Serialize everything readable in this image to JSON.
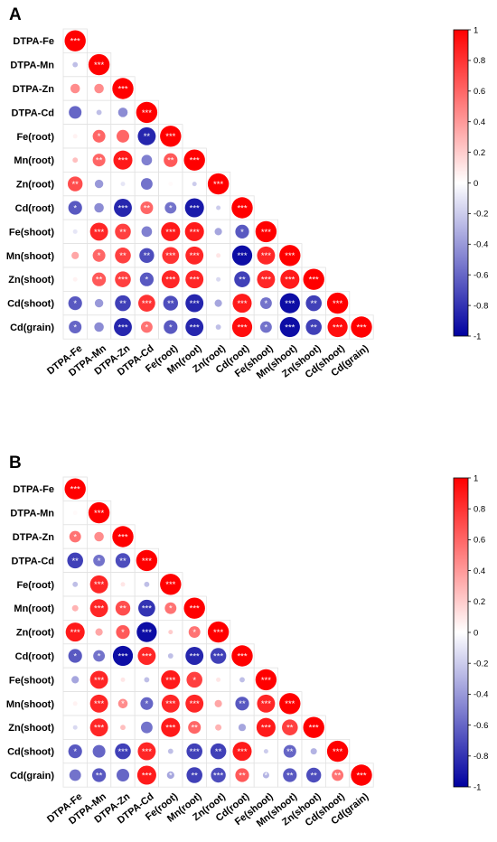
{
  "chart_data": [
    {
      "type": "heatmap",
      "panel": "A",
      "variables": [
        "DTPA-Fe",
        "DTPA-Mn",
        "DTPA-Zn",
        "DTPA-Cd",
        "Fe(root)",
        "Mn(root)",
        "Zn(root)",
        "Cd(root)",
        "Fe(shoot)",
        "Mn(shoot)",
        "Zn(shoot)",
        "Cd(shoot)",
        "Cd(grain)"
      ],
      "colorbar": {
        "min": -1,
        "max": 1,
        "ticks": [
          "1",
          "0.8",
          "0.6",
          "0.4",
          "0.2",
          "0",
          "-0.2",
          "-0.4",
          "-0.6",
          "-0.8",
          "-1"
        ]
      },
      "correlations": [
        [
          1
        ],
        [
          -0.25,
          1
        ],
        [
          0.45,
          0.45,
          1
        ],
        [
          -0.6,
          -0.25,
          -0.45,
          1
        ],
        [
          0.05,
          0.6,
          0.6,
          -0.85,
          1
        ],
        [
          0.25,
          0.6,
          0.9,
          -0.5,
          0.65,
          1
        ],
        [
          0.7,
          -0.4,
          -0.1,
          -0.55,
          0.02,
          -0.2,
          1
        ],
        [
          -0.65,
          -0.45,
          -0.85,
          0.6,
          -0.55,
          -0.9,
          -0.2,
          1
        ],
        [
          -0.1,
          0.85,
          0.75,
          -0.5,
          0.9,
          0.9,
          -0.35,
          -0.65,
          1
        ],
        [
          0.35,
          0.6,
          0.75,
          -0.7,
          0.8,
          0.85,
          0.1,
          -0.95,
          0.85,
          1
        ],
        [
          0.05,
          0.65,
          0.75,
          -0.65,
          0.85,
          0.85,
          -0.15,
          -0.75,
          0.85,
          0.9,
          1
        ],
        [
          -0.65,
          -0.4,
          -0.75,
          0.8,
          -0.7,
          -0.85,
          -0.35,
          0.9,
          -0.55,
          -0.95,
          -0.75,
          1
        ],
        [
          -0.6,
          -0.45,
          -0.85,
          0.55,
          -0.65,
          -0.85,
          -0.25,
          0.95,
          -0.55,
          -0.95,
          -0.75,
          0.95,
          1
        ]
      ],
      "significance": [
        [
          "***"
        ],
        [
          "",
          "***"
        ],
        [
          "",
          "",
          "***"
        ],
        [
          "",
          "",
          "",
          "***"
        ],
        [
          "",
          "*",
          "",
          "**",
          "***"
        ],
        [
          "",
          "**",
          "***",
          "",
          "**",
          "***"
        ],
        [
          "**",
          "",
          "",
          "",
          "",
          "",
          "***"
        ],
        [
          "*",
          "",
          "***",
          "**",
          "*",
          "***",
          "",
          "***"
        ],
        [
          "",
          "***",
          "**",
          "",
          "***",
          "***",
          "",
          "*",
          "***"
        ],
        [
          "",
          "*",
          "**",
          "**",
          "***",
          "***",
          "",
          "***",
          "***",
          "***"
        ],
        [
          "",
          "**",
          "***",
          "*",
          "***",
          "***",
          "",
          "**",
          "***",
          "***",
          "***"
        ],
        [
          "*",
          "",
          "**",
          "***",
          "**",
          "***",
          "",
          "***",
          "*",
          "***",
          "**",
          "***"
        ],
        [
          "*",
          "",
          "***",
          "*",
          "*",
          "***",
          "",
          "***",
          "*",
          "***",
          "**",
          "***",
          "***"
        ]
      ]
    },
    {
      "type": "heatmap",
      "panel": "B",
      "variables": [
        "DTPA-Fe",
        "DTPA-Mn",
        "DTPA-Zn",
        "DTPA-Cd",
        "Fe(root)",
        "Mn(root)",
        "Zn(root)",
        "Cd(root)",
        "Fe(shoot)",
        "Mn(shoot)",
        "Zn(shoot)",
        "Cd(shoot)",
        "Cd(grain)"
      ],
      "colorbar": {
        "min": -1,
        "max": 1,
        "ticks": [
          "1",
          "0.8",
          "0.6",
          "0.4",
          "0.2",
          "0",
          "-0.2",
          "-0.4",
          "-0.6",
          "-0.8",
          "-1"
        ]
      },
      "correlations": [
        [
          1
        ],
        [
          0.02,
          1
        ],
        [
          0.55,
          0.45,
          1
        ],
        [
          -0.75,
          -0.55,
          -0.7,
          1
        ],
        [
          -0.25,
          0.85,
          0.1,
          -0.25,
          1
        ],
        [
          0.3,
          0.85,
          0.7,
          -0.8,
          0.55,
          1
        ],
        [
          0.9,
          0.35,
          0.65,
          -0.95,
          0.2,
          0.55,
          1
        ],
        [
          -0.65,
          -0.55,
          -0.95,
          0.85,
          -0.25,
          -0.85,
          -0.75,
          1
        ],
        [
          -0.35,
          0.85,
          0.1,
          -0.25,
          0.9,
          0.75,
          0.1,
          -0.25,
          1
        ],
        [
          0.05,
          0.85,
          0.45,
          -0.6,
          0.85,
          0.85,
          0.35,
          -0.65,
          0.85,
          1
        ],
        [
          -0.15,
          0.85,
          0.25,
          -0.55,
          0.9,
          0.6,
          0.3,
          -0.35,
          0.9,
          0.75,
          1
        ],
        [
          -0.65,
          -0.6,
          -0.75,
          0.85,
          -0.25,
          -0.75,
          -0.75,
          0.9,
          -0.2,
          -0.6,
          -0.3,
          1
        ],
        [
          -0.55,
          -0.65,
          -0.6,
          0.9,
          -0.35,
          -0.75,
          -0.7,
          0.65,
          -0.3,
          -0.65,
          -0.7,
          0.55,
          1
        ]
      ],
      "significance": [
        [
          "***"
        ],
        [
          "",
          "***"
        ],
        [
          "*",
          "",
          "***"
        ],
        [
          "**",
          "*",
          "**",
          "***"
        ],
        [
          "",
          "***",
          "",
          "",
          "***"
        ],
        [
          "",
          "***",
          "**",
          "***",
          "*",
          "***"
        ],
        [
          "***",
          "",
          "*",
          "***",
          "",
          "*",
          "***"
        ],
        [
          "*",
          "*",
          "***",
          "***",
          "",
          "***",
          "***",
          "***"
        ],
        [
          "",
          "***",
          "",
          "",
          "***",
          "*",
          "",
          "",
          "***"
        ],
        [
          "",
          "***",
          "*",
          "*",
          "***",
          "***",
          "",
          "**",
          "***",
          "***"
        ],
        [
          "",
          "***",
          "",
          "",
          "***",
          "**",
          "",
          "",
          "***",
          "**",
          "***"
        ],
        [
          "*",
          "",
          "***",
          "***",
          "",
          "***",
          "**",
          "***",
          "",
          "**",
          "",
          "***"
        ],
        [
          "",
          "**",
          "",
          "***",
          "*",
          "**",
          "***",
          "**",
          "*",
          "**",
          "**",
          "**",
          "***"
        ]
      ]
    }
  ]
}
